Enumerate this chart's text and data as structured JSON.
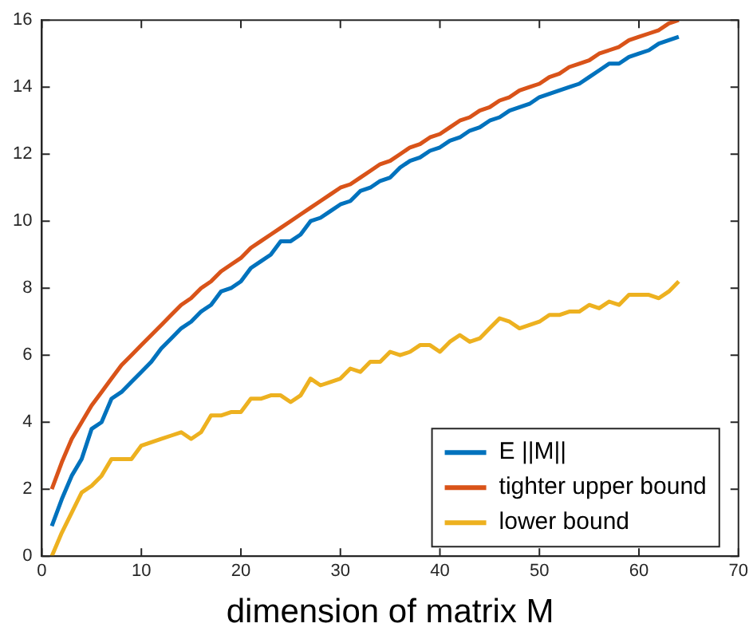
{
  "chart_data": {
    "type": "line",
    "xlabel": "dimension of matrix M",
    "x": [
      1,
      2,
      3,
      4,
      5,
      6,
      7,
      8,
      9,
      10,
      11,
      12,
      13,
      14,
      15,
      16,
      17,
      18,
      19,
      20,
      21,
      22,
      23,
      24,
      25,
      26,
      27,
      28,
      29,
      30,
      31,
      32,
      33,
      34,
      35,
      36,
      37,
      38,
      39,
      40,
      41,
      42,
      43,
      44,
      45,
      46,
      47,
      48,
      49,
      50,
      51,
      52,
      53,
      54,
      55,
      56,
      57,
      58,
      59,
      60,
      61,
      62,
      63,
      64
    ],
    "series": [
      {
        "name": "E ||M||",
        "color": "#0072bd",
        "values": [
          0.9,
          1.7,
          2.4,
          2.9,
          3.8,
          4.0,
          4.7,
          4.9,
          5.2,
          5.5,
          5.8,
          6.2,
          6.5,
          6.8,
          7.0,
          7.3,
          7.5,
          7.9,
          8.0,
          8.2,
          8.6,
          8.8,
          9.0,
          9.4,
          9.4,
          9.6,
          10.0,
          10.1,
          10.3,
          10.5,
          10.6,
          10.9,
          11.0,
          11.2,
          11.3,
          11.6,
          11.8,
          11.9,
          12.1,
          12.2,
          12.4,
          12.5,
          12.7,
          12.8,
          13.0,
          13.1,
          13.3,
          13.4,
          13.5,
          13.7,
          13.8,
          13.9,
          14.0,
          14.1,
          14.3,
          14.5,
          14.7,
          14.7,
          14.9,
          15.0,
          15.1,
          15.3,
          15.4,
          15.5
        ]
      },
      {
        "name": "tighter upper bound",
        "color": "#d95319",
        "values": [
          2.0,
          2.8,
          3.5,
          4.0,
          4.5,
          4.9,
          5.3,
          5.7,
          6.0,
          6.3,
          6.6,
          6.9,
          7.2,
          7.5,
          7.7,
          8.0,
          8.2,
          8.5,
          8.7,
          8.9,
          9.2,
          9.4,
          9.6,
          9.8,
          10.0,
          10.2,
          10.4,
          10.6,
          10.8,
          11.0,
          11.1,
          11.3,
          11.5,
          11.7,
          11.8,
          12.0,
          12.2,
          12.3,
          12.5,
          12.6,
          12.8,
          13.0,
          13.1,
          13.3,
          13.4,
          13.6,
          13.7,
          13.9,
          14.0,
          14.1,
          14.3,
          14.4,
          14.6,
          14.7,
          14.8,
          15.0,
          15.1,
          15.2,
          15.4,
          15.5,
          15.6,
          15.7,
          15.9,
          16.0
        ]
      },
      {
        "name": "lower bound",
        "color": "#edb120",
        "values": [
          0.0,
          0.7,
          1.3,
          1.9,
          2.1,
          2.4,
          2.9,
          2.9,
          2.9,
          3.3,
          3.4,
          3.5,
          3.6,
          3.7,
          3.5,
          3.7,
          4.2,
          4.2,
          4.3,
          4.3,
          4.7,
          4.7,
          4.8,
          4.8,
          4.6,
          4.8,
          5.3,
          5.1,
          5.2,
          5.3,
          5.6,
          5.5,
          5.8,
          5.8,
          6.1,
          6.0,
          6.1,
          6.3,
          6.3,
          6.1,
          6.4,
          6.6,
          6.4,
          6.5,
          6.8,
          7.1,
          7.0,
          6.8,
          6.9,
          7.0,
          7.2,
          7.2,
          7.3,
          7.3,
          7.5,
          7.4,
          7.6,
          7.5,
          7.8,
          7.8,
          7.8,
          7.7,
          7.9,
          8.2
        ]
      }
    ],
    "xlim": [
      0,
      70
    ],
    "xticks": [
      0,
      10,
      20,
      30,
      40,
      50,
      60,
      70
    ],
    "ylim": [
      0,
      16
    ],
    "yticks": [
      0,
      2,
      4,
      6,
      8,
      10,
      12,
      14,
      16
    ],
    "grid": false,
    "legend": "bottom right",
    "marker": "none",
    "line_style": "solid"
  }
}
